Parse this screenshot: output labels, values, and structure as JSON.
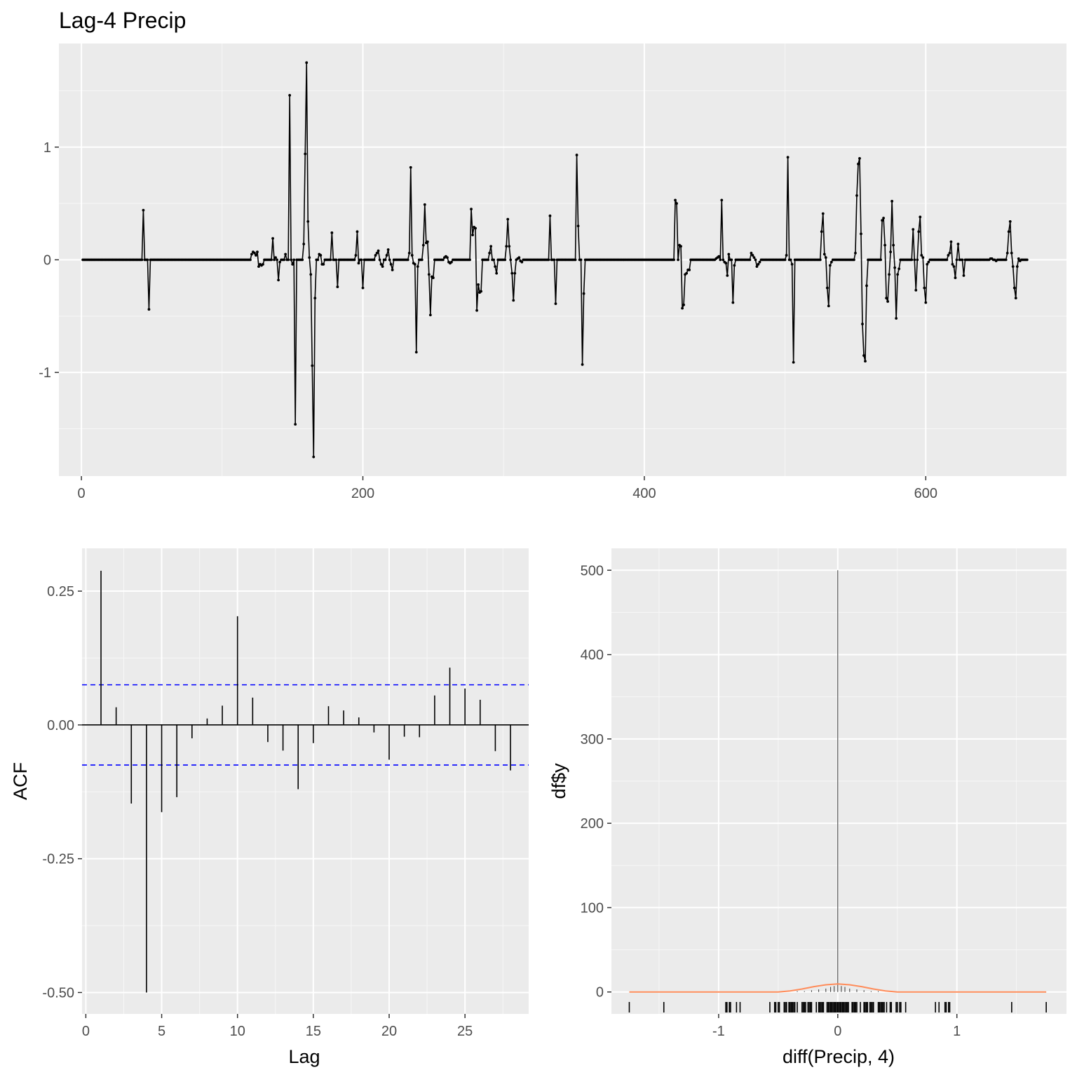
{
  "chart_data": [
    {
      "type": "line",
      "title": "Lag-4 Precip",
      "xlabel": "",
      "ylabel": "",
      "xlim": [
        -16,
        700
      ],
      "ylim": [
        -1.92,
        1.92
      ],
      "x_ticks": [
        0,
        200,
        400,
        600
      ],
      "y_ticks": [
        -1,
        0,
        1
      ],
      "y_tick_labels": [
        "-1",
        "0",
        "1"
      ],
      "n": 672,
      "series": [
        {
          "points": [
            [
              43,
              0.44
            ],
            [
              47,
              -0.44
            ],
            [
              120,
              0.05
            ],
            [
              121,
              0.07
            ],
            [
              122,
              0.06
            ],
            [
              123,
              0.04
            ],
            [
              124,
              0.07
            ],
            [
              125,
              -0.06
            ],
            [
              126,
              -0.04
            ],
            [
              127,
              -0.05
            ],
            [
              128,
              -0.04
            ],
            [
              135,
              0.19
            ],
            [
              137,
              0.02
            ],
            [
              139,
              -0.18
            ],
            [
              140,
              -0.02
            ],
            [
              144,
              0.05
            ],
            [
              147,
              1.46
            ],
            [
              149,
              -0.04
            ],
            [
              151,
              -1.46
            ],
            [
              157,
              0.14
            ],
            [
              158,
              0.94
            ],
            [
              159,
              1.75
            ],
            [
              160,
              0.34
            ],
            [
              161,
              0.02
            ],
            [
              162,
              -0.13
            ],
            [
              163,
              -0.94
            ],
            [
              164,
              -1.75
            ],
            [
              165,
              -0.34
            ],
            [
              168,
              0.05
            ],
            [
              169,
              0.04
            ],
            [
              170,
              -0.04
            ],
            [
              171,
              -0.04
            ],
            [
              177,
              0.24
            ],
            [
              181,
              -0.24
            ],
            [
              194,
              0.04
            ],
            [
              195,
              0.25
            ],
            [
              196,
              -0.03
            ],
            [
              199,
              -0.25
            ],
            [
              208,
              0.04
            ],
            [
              209,
              0.06
            ],
            [
              210,
              0.08
            ],
            [
              212,
              -0.04
            ],
            [
              213,
              -0.06
            ],
            [
              216,
              0.04
            ],
            [
              217,
              0.09
            ],
            [
              219,
              -0.04
            ],
            [
              220,
              -0.09
            ],
            [
              232,
              0.06
            ],
            [
              233,
              0.82
            ],
            [
              234,
              0.04
            ],
            [
              235,
              -0.03
            ],
            [
              236,
              -0.04
            ],
            [
              237,
              -0.82
            ],
            [
              238,
              -0.06
            ],
            [
              242,
              0.13
            ],
            [
              243,
              0.49
            ],
            [
              244,
              0.15
            ],
            [
              245,
              0.16
            ],
            [
              246,
              -0.13
            ],
            [
              247,
              -0.49
            ],
            [
              248,
              -0.15
            ],
            [
              249,
              -0.16
            ],
            [
              257,
              0.02
            ],
            [
              258,
              0.03
            ],
            [
              259,
              0.02
            ],
            [
              260,
              -0.02
            ],
            [
              261,
              -0.03
            ],
            [
              262,
              -0.02
            ],
            [
              276,
              0.45
            ],
            [
              277,
              0.22
            ],
            [
              278,
              0.29
            ],
            [
              279,
              0.28
            ],
            [
              280,
              -0.45
            ],
            [
              281,
              -0.22
            ],
            [
              282,
              -0.29
            ],
            [
              283,
              -0.28
            ],
            [
              289,
              0.06
            ],
            [
              290,
              0.12
            ],
            [
              293,
              -0.06
            ],
            [
              294,
              -0.12
            ],
            [
              301,
              0.12
            ],
            [
              302,
              0.36
            ],
            [
              303,
              0.12
            ],
            [
              305,
              -0.12
            ],
            [
              306,
              -0.36
            ],
            [
              307,
              -0.12
            ],
            [
              309,
              0.01
            ],
            [
              310,
              0.02
            ],
            [
              311,
              -0.01
            ],
            [
              312,
              -0.02
            ],
            [
              332,
              0.39
            ],
            [
              336,
              -0.39
            ],
            [
              351,
              0.93
            ],
            [
              352,
              0.3
            ],
            [
              355,
              -0.93
            ],
            [
              356,
              -0.3
            ],
            [
              421,
              0.53
            ],
            [
              422,
              0.5
            ],
            [
              424,
              0.13
            ],
            [
              425,
              0.12
            ],
            [
              426,
              -0.43
            ],
            [
              427,
              -0.4
            ],
            [
              428,
              -0.13
            ],
            [
              429,
              -0.12
            ],
            [
              430,
              -0.09
            ],
            [
              431,
              -0.09
            ],
            [
              450,
              0.01
            ],
            [
              451,
              0.02
            ],
            [
              452,
              0.03
            ],
            [
              454,
              0.53
            ],
            [
              456,
              -0.02
            ],
            [
              457,
              -0.03
            ],
            [
              458,
              -0.14
            ],
            [
              459,
              0.05
            ],
            [
              462,
              -0.38
            ],
            [
              463,
              -0.05
            ],
            [
              475,
              0.06
            ],
            [
              476,
              0.04
            ],
            [
              477,
              0.02
            ],
            [
              479,
              -0.06
            ],
            [
              480,
              -0.04
            ],
            [
              481,
              -0.02
            ],
            [
              500,
              0.04
            ],
            [
              501,
              0.91
            ],
            [
              504,
              -0.04
            ],
            [
              505,
              -0.91
            ],
            [
              525,
              0.25
            ],
            [
              526,
              0.41
            ],
            [
              527,
              0.05
            ],
            [
              528,
              0.02
            ],
            [
              529,
              -0.25
            ],
            [
              530,
              -0.41
            ],
            [
              531,
              -0.05
            ],
            [
              532,
              -0.02
            ],
            [
              549,
              0.06
            ],
            [
              550,
              0.57
            ],
            [
              551,
              0.85
            ],
            [
              552,
              0.9
            ],
            [
              553,
              0.23
            ],
            [
              554,
              -0.57
            ],
            [
              555,
              -0.85
            ],
            [
              556,
              -0.9
            ],
            [
              557,
              -0.23
            ],
            [
              568,
              0.35
            ],
            [
              569,
              0.37
            ],
            [
              570,
              0.13
            ],
            [
              571,
              -0.34
            ],
            [
              572,
              -0.37
            ],
            [
              573,
              -0.13
            ],
            [
              574,
              0.07
            ],
            [
              575,
              0.52
            ],
            [
              576,
              0.13
            ],
            [
              577,
              -0.07
            ],
            [
              578,
              -0.52
            ],
            [
              579,
              -0.13
            ],
            [
              580,
              -0.08
            ],
            [
              590,
              0.27
            ],
            [
              592,
              -0.27
            ],
            [
              594,
              0.25
            ],
            [
              595,
              0.38
            ],
            [
              596,
              0.04
            ],
            [
              597,
              0.02
            ],
            [
              598,
              -0.25
            ],
            [
              599,
              -0.38
            ],
            [
              600,
              -0.04
            ],
            [
              601,
              -0.02
            ],
            [
              615,
              0.04
            ],
            [
              616,
              0.06
            ],
            [
              617,
              0.16
            ],
            [
              618,
              -0.04
            ],
            [
              619,
              -0.06
            ],
            [
              620,
              -0.16
            ],
            [
              622,
              0.14
            ],
            [
              626,
              -0.14
            ],
            [
              645,
              0.01
            ],
            [
              646,
              0.01
            ],
            [
              649,
              -0.01
            ],
            [
              657,
              0.06
            ],
            [
              658,
              0.25
            ],
            [
              659,
              0.34
            ],
            [
              660,
              0.06
            ],
            [
              661,
              -0.06
            ],
            [
              662,
              -0.25
            ],
            [
              663,
              -0.34
            ],
            [
              664,
              -0.06
            ],
            [
              665,
              0.01
            ],
            [
              666,
              -0.01
            ]
          ]
        }
      ]
    },
    {
      "type": "bar",
      "title": "",
      "xlabel": "Lag",
      "ylabel": "ACF",
      "xlim": [
        -0.25,
        29.2
      ],
      "ylim": [
        -0.54,
        0.33
      ],
      "x_ticks": [
        0,
        5,
        10,
        15,
        20,
        25
      ],
      "y_ticks": [
        -0.5,
        -0.25,
        0,
        0.25
      ],
      "y_tick_labels": [
        "-0.50",
        "-0.25",
        "0.00",
        "0.25"
      ],
      "ci": 0.075,
      "x": [
        1,
        2,
        3,
        4,
        5,
        6,
        7,
        8,
        9,
        10,
        11,
        12,
        13,
        14,
        15,
        16,
        17,
        18,
        19,
        20,
        21,
        22,
        23,
        24,
        25,
        26,
        27,
        28
      ],
      "values": [
        0.288,
        0.033,
        -0.147,
        -0.5,
        -0.163,
        -0.135,
        -0.025,
        0.012,
        0.036,
        0.203,
        0.051,
        -0.032,
        -0.048,
        -0.12,
        -0.034,
        0.035,
        0.027,
        0.014,
        -0.014,
        -0.065,
        -0.022,
        -0.023,
        0.055,
        0.107,
        0.068,
        0.047,
        -0.049,
        -0.085
      ],
      "colors": {
        "ci_line": "#0000ff",
        "bar": "#000000"
      }
    },
    {
      "type": "bar",
      "title": "",
      "xlabel": "diff(Precip, 4)",
      "ylabel": "df$y",
      "xlim": [
        -1.9,
        1.92
      ],
      "ylim": [
        -26,
        526
      ],
      "x_ticks": [
        -1,
        0,
        1
      ],
      "y_ticks": [
        0,
        100,
        200,
        300,
        400,
        500
      ],
      "histogram": {
        "x": [
          -0.34,
          -0.28,
          -0.22,
          -0.16,
          -0.1,
          -0.06,
          -0.03,
          0,
          0.03,
          0.06,
          0.1,
          0.16,
          0.22,
          0.28,
          0.34
        ],
        "values": [
          1,
          1,
          2,
          3,
          4,
          6,
          7,
          500,
          7,
          6,
          4,
          3,
          2,
          1,
          1
        ]
      },
      "density": {
        "x": [
          -1.75,
          -0.5,
          -0.4,
          -0.3,
          -0.2,
          -0.1,
          0,
          0.1,
          0.2,
          0.3,
          0.4,
          0.5,
          1.75
        ],
        "values": [
          0,
          0,
          1.2,
          3.5,
          6.3,
          8.5,
          9.5,
          8.5,
          6.3,
          3.5,
          1.2,
          0,
          0
        ]
      },
      "rug": [
        -1.75,
        -1.46,
        -0.94,
        -0.93,
        -0.91,
        -0.9,
        -0.85,
        -0.82,
        -0.57,
        -0.53,
        -0.52,
        -0.5,
        -0.49,
        -0.45,
        -0.44,
        -0.43,
        -0.41,
        -0.4,
        -0.39,
        -0.38,
        -0.37,
        -0.36,
        -0.34,
        -0.3,
        -0.29,
        -0.28,
        -0.27,
        -0.25,
        -0.24,
        -0.23,
        -0.22,
        -0.18,
        -0.16,
        -0.15,
        -0.14,
        -0.13,
        -0.12,
        -0.09,
        -0.08,
        -0.07,
        -0.06,
        -0.05,
        -0.04,
        -0.03,
        -0.02,
        -0.01,
        0,
        0.01,
        0.02,
        0.03,
        0.04,
        0.05,
        0.06,
        0.07,
        0.08,
        0.09,
        0.12,
        0.13,
        0.14,
        0.15,
        0.16,
        0.19,
        0.22,
        0.23,
        0.24,
        0.25,
        0.27,
        0.28,
        0.29,
        0.3,
        0.34,
        0.35,
        0.36,
        0.37,
        0.38,
        0.39,
        0.41,
        0.44,
        0.45,
        0.49,
        0.5,
        0.52,
        0.53,
        0.57,
        0.82,
        0.85,
        0.9,
        0.91,
        0.93,
        0.94,
        1.46,
        1.75
      ],
      "colors": {
        "density": "#ff8c5a",
        "bar": "#333333"
      }
    }
  ]
}
